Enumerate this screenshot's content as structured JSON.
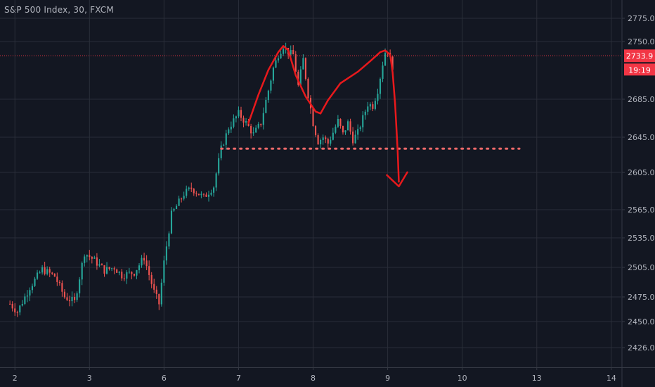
{
  "chart_data": {
    "type": "candlestick",
    "title": "S&P 500 Index, 30, FXCM",
    "xlabel": "",
    "ylabel": "",
    "x_ticks": [
      "2",
      "3",
      "6",
      "7",
      "8",
      "9",
      "10",
      "13",
      "14"
    ],
    "x_tick_index": [
      2,
      32,
      62,
      92,
      122,
      152,
      182,
      212,
      242
    ],
    "x_range_index": [
      -4,
      246
    ],
    "y_ticks": [
      2426.0,
      2450.0,
      2475.0,
      2505.0,
      2535.0,
      2565.0,
      2605.0,
      2645.0,
      2685.0,
      2750.0,
      2775.0
    ],
    "y_tick_labels": [
      "2426.0",
      "2450.0",
      "2475.0",
      "2505.0",
      "2535.0",
      "2565.0",
      "2605.0",
      "2645.0",
      "2685.0",
      "2750.0",
      "2775.0"
    ],
    "ylim": [
      2415,
      2785
    ],
    "last_price": 2733.9,
    "last_price_label": "2733.9",
    "countdown": "19:19",
    "grid": true,
    "up_color": "#26a69a",
    "down_color": "#ef5350",
    "annotation_color": "#e8191c",
    "price_line_color": "#f23645",
    "support_level": 2632,
    "anchors": [
      [
        0,
        2468
      ],
      [
        3,
        2460
      ],
      [
        8,
        2485
      ],
      [
        13,
        2503
      ],
      [
        18,
        2496
      ],
      [
        22,
        2475
      ],
      [
        26,
        2470
      ],
      [
        30,
        2520
      ],
      [
        34,
        2512
      ],
      [
        38,
        2502
      ],
      [
        42,
        2505
      ],
      [
        45,
        2497
      ],
      [
        50,
        2500
      ],
      [
        54,
        2515
      ],
      [
        58,
        2480
      ],
      [
        60,
        2468
      ],
      [
        62,
        2510
      ],
      [
        65,
        2560
      ],
      [
        70,
        2582
      ],
      [
        73,
        2588
      ],
      [
        78,
        2578
      ],
      [
        82,
        2590
      ],
      [
        85,
        2632
      ],
      [
        88,
        2655
      ],
      [
        92,
        2670
      ],
      [
        95,
        2660
      ],
      [
        98,
        2648
      ],
      [
        101,
        2660
      ],
      [
        104,
        2695
      ],
      [
        106,
        2720
      ],
      [
        108,
        2735
      ],
      [
        110,
        2745
      ],
      [
        112,
        2738
      ],
      [
        114,
        2735
      ],
      [
        116,
        2700
      ],
      [
        118,
        2730
      ],
      [
        120,
        2690
      ],
      [
        122,
        2660
      ],
      [
        124,
        2640
      ],
      [
        126,
        2645
      ],
      [
        128,
        2638
      ],
      [
        130,
        2650
      ],
      [
        132,
        2662
      ],
      [
        134,
        2648
      ],
      [
        136,
        2660
      ],
      [
        138,
        2642
      ],
      [
        140,
        2650
      ],
      [
        142,
        2665
      ],
      [
        144,
        2680
      ],
      [
        146,
        2678
      ],
      [
        148,
        2695
      ],
      [
        150,
        2725
      ],
      [
        151,
        2738
      ],
      [
        152,
        2740
      ],
      [
        153,
        2730
      ],
      [
        154,
        2722
      ]
    ]
  }
}
